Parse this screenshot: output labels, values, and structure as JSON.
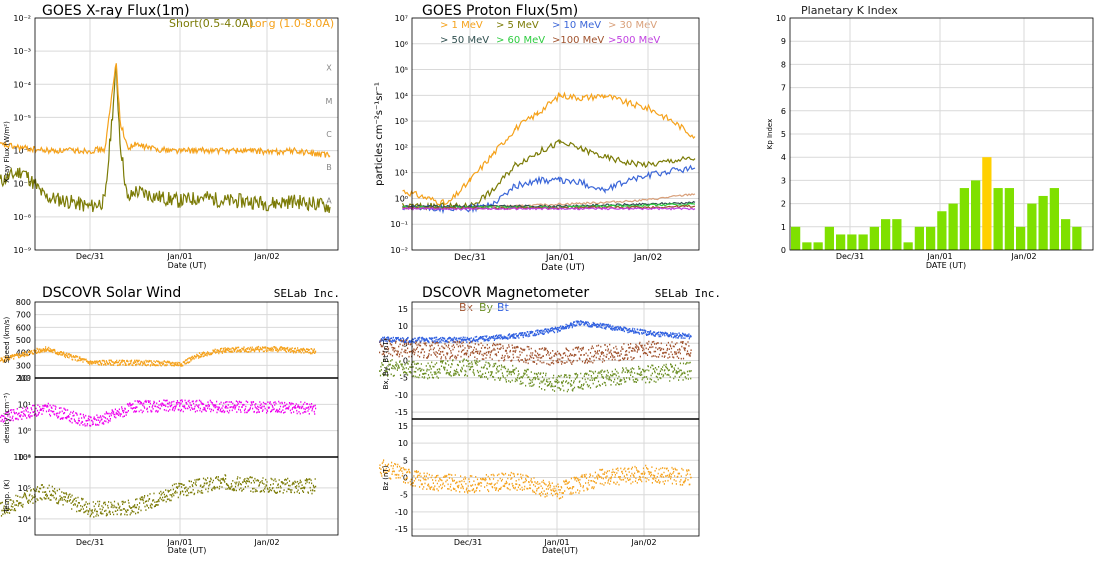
{
  "colors": {
    "xray_short": "#7b7b06",
    "xray_long": "#f5a21c",
    "kp_normal": "#7fe000",
    "kp_storm": "#ffd000",
    "density": "#ee00ee",
    "bx": "#a0522d",
    "by": "#6b8e23",
    "bt": "#3060e0",
    "bz": "#f5a21c"
  },
  "date_ticks": [
    "Dec/31",
    "Jan/01",
    "Jan/02"
  ],
  "xlabel_ut": "Date (UT)",
  "xlabel_date_ut": "DATE (UT)",
  "xlabel_date_ut_nospace": "Date(UT)",
  "chart_data": [
    {
      "type": "line",
      "title": "GOES X-ray Flux(1m)",
      "ylabel": "X-ray Flux (W/m²)",
      "yscale": "log",
      "ylim": [
        1e-09,
        0.01
      ],
      "ytick_labels": [
        "10⁻²",
        "10⁻³",
        "10⁻⁴",
        "10⁻⁵",
        "10⁻⁶",
        "10⁻⁷",
        "10⁻⁸",
        "10⁻⁹"
      ],
      "flare_classes": [
        "X",
        "M",
        "C",
        "B",
        "A"
      ],
      "legend": "top-right",
      "series": [
        {
          "name": "Short(0.5-4.0A)",
          "color": "#7b7b06",
          "x": [
            "Dec/30 00:00",
            "Dec/30 06:00",
            "Dec/30 12:00",
            "Dec/30 18:00",
            "Dec/31 00:00",
            "Dec/31 04:00",
            "Dec/31 07:00",
            "Dec/31 08:00",
            "Dec/31 10:00",
            "Dec/31 12:00",
            "Dec/31 18:00",
            "Jan/01 00:00",
            "Jan/01 06:00",
            "Jan/01 12:00",
            "Jan/01 18:00",
            "Jan/02 00:00",
            "Jan/02 06:00",
            "Jan/02 12:00",
            "Jan/02 16:00"
          ],
          "values": [
            1.2e-07,
            2.5e-07,
            4e-08,
            3e-08,
            2e-08,
            3e-08,
            0.0003,
            2e-06,
            3e-08,
            6e-08,
            4e-08,
            3e-08,
            4e-08,
            3e-08,
            3e-08,
            2.5e-08,
            3e-08,
            2.5e-08,
            2e-08
          ]
        },
        {
          "name": "Long (1.0-8.0A)",
          "color": "#f5a21c",
          "x": [
            "Dec/30 00:00",
            "Dec/30 06:00",
            "Dec/30 12:00",
            "Dec/30 18:00",
            "Dec/31 00:00",
            "Dec/31 04:00",
            "Dec/31 07:00",
            "Dec/31 08:00",
            "Dec/31 10:00",
            "Dec/31 12:00",
            "Dec/31 18:00",
            "Jan/01 00:00",
            "Jan/01 06:00",
            "Jan/01 12:00",
            "Jan/01 18:00",
            "Jan/02 00:00",
            "Jan/02 06:00",
            "Jan/02 12:00",
            "Jan/02 16:00"
          ],
          "values": [
            1.5e-06,
            1.2e-06,
            1e-06,
            1e-06,
            1e-06,
            1.1e-06,
            0.0005,
            8e-06,
            1.2e-06,
            1.5e-06,
            1.1e-06,
            1e-06,
            1e-06,
            1e-06,
            1e-06,
            9e-07,
            1e-06,
            8e-07,
            7e-07
          ]
        }
      ]
    },
    {
      "type": "line",
      "title": "GOES Proton Flux(5m)",
      "ylabel": "particles cm⁻²s⁻¹sr⁻¹",
      "yscale": "log",
      "ylim": [
        0.01,
        10000000.0
      ],
      "ytick_labels": [
        "10⁷",
        "10⁶",
        "10⁵",
        "10⁴",
        "10³",
        "10²",
        "10¹",
        "10⁰",
        "10⁻¹",
        "10⁻²"
      ],
      "legend": "top",
      "series": [
        {
          "name": "> 1 MeV",
          "color": "#f5a21c",
          "x": [
            "Dec/30 06:00",
            "Dec/30 18:00",
            "Dec/31 00:00",
            "Dec/31 06:00",
            "Dec/31 12:00",
            "Dec/31 18:00",
            "Jan/01 00:00",
            "Jan/01 06:00",
            "Jan/01 12:00",
            "Jan/01 18:00",
            "Jan/02 00:00",
            "Jan/02 06:00",
            "Jan/02 12:00"
          ],
          "values": [
            2,
            0.6,
            5,
            50,
            500,
            2000,
            10000,
            8000,
            10000,
            5000,
            3000,
            1000,
            250
          ]
        },
        {
          "name": "> 5 MeV",
          "color": "#7b7b06",
          "x": [
            "Dec/30 06:00",
            "Dec/30 18:00",
            "Dec/31 00:00",
            "Dec/31 06:00",
            "Dec/31 12:00",
            "Dec/31 18:00",
            "Jan/01 00:00",
            "Jan/01 06:00",
            "Jan/01 12:00",
            "Jan/01 18:00",
            "Jan/02 00:00",
            "Jan/02 06:00",
            "Jan/02 12:00"
          ],
          "values": [
            0.5,
            0.5,
            0.5,
            2,
            20,
            60,
            150,
            80,
            40,
            25,
            20,
            30,
            35
          ]
        },
        {
          "name": "> 10 MeV",
          "color": "#3b66d8",
          "x": [
            "Dec/30 06:00",
            "Dec/30 18:00",
            "Dec/31 00:00",
            "Dec/31 06:00",
            "Dec/31 12:00",
            "Dec/31 18:00",
            "Jan/01 00:00",
            "Jan/01 06:00",
            "Jan/01 12:00",
            "Jan/01 18:00",
            "Jan/02 00:00",
            "Jan/02 06:00",
            "Jan/02 12:00"
          ],
          "values": [
            0.4,
            0.4,
            0.4,
            0.6,
            3,
            5,
            5,
            4,
            2,
            5,
            8,
            12,
            15
          ]
        },
        {
          "name": "> 30 MeV",
          "color": "#d9a07a",
          "x": [
            "Dec/30 06:00",
            "Dec/31 00:00",
            "Dec/31 12:00",
            "Jan/01 00:00",
            "Jan/01 12:00",
            "Jan/02 00:00",
            "Jan/02 12:00"
          ],
          "values": [
            0.45,
            0.45,
            0.5,
            0.6,
            0.7,
            0.9,
            1.5
          ]
        },
        {
          "name": "> 50 MeV",
          "color": "#2f4f4f",
          "x": [
            "Dec/30 06:00",
            "Dec/31 00:00",
            "Dec/31 12:00",
            "Jan/01 00:00",
            "Jan/01 12:00",
            "Jan/02 00:00",
            "Jan/02 12:00"
          ],
          "values": [
            0.5,
            0.5,
            0.5,
            0.5,
            0.55,
            0.6,
            0.7
          ]
        },
        {
          "name": "> 60 MeV",
          "color": "#2ecc40",
          "x": [
            "Dec/30 06:00",
            "Dec/31 00:00",
            "Dec/31 12:00",
            "Jan/01 00:00",
            "Jan/01 12:00",
            "Jan/02 00:00",
            "Jan/02 12:00"
          ],
          "values": [
            0.45,
            0.45,
            0.45,
            0.45,
            0.5,
            0.55,
            0.6
          ]
        },
        {
          "name": ">100 MeV",
          "color": "#a0522d",
          "x": [
            "Dec/30 06:00",
            "Dec/31 00:00",
            "Dec/31 12:00",
            "Jan/01 00:00",
            "Jan/01 12:00",
            "Jan/02 00:00",
            "Jan/02 12:00"
          ],
          "values": [
            0.42,
            0.42,
            0.42,
            0.42,
            0.45,
            0.45,
            0.5
          ]
        },
        {
          "name": ">500 MeV",
          "color": "#c040e0",
          "x": [
            "Dec/30 06:00",
            "Dec/31 00:00",
            "Dec/31 12:00",
            "Jan/01 00:00",
            "Jan/01 12:00",
            "Jan/02 00:00",
            "Jan/02 12:00"
          ],
          "values": [
            0.4,
            0.4,
            0.4,
            0.4,
            0.4,
            0.4,
            0.4
          ]
        }
      ]
    },
    {
      "type": "bar",
      "title": "Planetary K Index",
      "ylabel": "Kp Index",
      "ylim": [
        0,
        10
      ],
      "yticks": [
        0,
        1,
        2,
        3,
        4,
        5,
        6,
        7,
        8,
        9,
        10
      ],
      "values": [
        1,
        0.33,
        0.33,
        1,
        0.67,
        0.67,
        0.67,
        1,
        1.33,
        1.33,
        0.33,
        1,
        1,
        1.67,
        2,
        2.67,
        3,
        4,
        2.67,
        2.67,
        1,
        2,
        2.33,
        2.67,
        1.33,
        1
      ],
      "storm_index": 17
    },
    {
      "type": "scatter",
      "title": "DSCOVR Solar Wind",
      "credit": "SELab Inc.",
      "panels": [
        {
          "ylabel": "Speed (km/s)",
          "ylim": [
            200,
            800
          ],
          "yticks": [
            200,
            300,
            400,
            500,
            600,
            700,
            800
          ],
          "color": "#f5a21c",
          "x": [
            "Dec/30 00:00",
            "Dec/30 12:00",
            "Dec/31 00:00",
            "Dec/31 12:00",
            "Jan/01 00:00",
            "Jan/01 06:00",
            "Jan/01 12:00",
            "Jan/02 00:00",
            "Jan/02 12:00"
          ],
          "values": [
            340,
            430,
            320,
            320,
            310,
            390,
            420,
            430,
            410
          ]
        },
        {
          "ylabel": "density (cm⁻³)",
          "yscale": "log",
          "ylim": [
            0.1,
            100
          ],
          "ytick_labels": [
            "10²",
            "10¹",
            "10⁰",
            "10⁻¹"
          ],
          "color": "#ee00ee",
          "x": [
            "Dec/30 00:00",
            "Dec/30 12:00",
            "Dec/31 00:00",
            "Dec/31 12:00",
            "Jan/01 00:00",
            "Jan/01 12:00",
            "Jan/02 00:00",
            "Jan/02 12:00"
          ],
          "values": [
            3,
            7,
            2,
            8,
            9,
            8,
            8,
            7
          ]
        },
        {
          "ylabel": "Temp. (K)",
          "yscale": "log",
          "ylim": [
            3000,
            1000000
          ],
          "ytick_labels": [
            "10⁶",
            "10⁵",
            "10⁴"
          ],
          "color": "#7b7b06",
          "x": [
            "Dec/30 00:00",
            "Dec/30 12:00",
            "Dec/31 00:00",
            "Dec/31 12:00",
            "Jan/01 00:00",
            "Jan/01 12:00",
            "Jan/02 00:00",
            "Jan/02 12:00"
          ],
          "values": [
            20000,
            80000,
            20000,
            25000,
            90000,
            150000,
            120000,
            110000
          ]
        }
      ]
    },
    {
      "type": "scatter",
      "title": "DSCOVR Magnetometer",
      "credit": "SELab Inc.",
      "legend": [
        "Bx",
        "By",
        "Bt"
      ],
      "panels": [
        {
          "ylabel": "Bx, By, Bt (nT)",
          "ylim": [
            -17,
            17
          ],
          "yticks": [
            15,
            10,
            5,
            0,
            -5,
            -10,
            -15
          ],
          "series": [
            {
              "name": "Bt",
              "color": "#3060e0",
              "x": [
                "Dec/30 00:00",
                "Dec/30 12:00",
                "Dec/31 00:00",
                "Dec/31 12:00",
                "Jan/01 00:00",
                "Jan/01 06:00",
                "Jan/01 12:00",
                "Jan/02 00:00",
                "Jan/02 12:00"
              ],
              "values": [
                6,
                6,
                6,
                7,
                9,
                11,
                10,
                8,
                7
              ]
            },
            {
              "name": "Bx",
              "color": "#a0522d",
              "x": [
                "Dec/30 00:00",
                "Dec/30 12:00",
                "Dec/31 00:00",
                "Dec/31 12:00",
                "Jan/01 00:00",
                "Jan/01 12:00",
                "Jan/02 00:00",
                "Jan/02 12:00"
              ],
              "values": [
                4,
                3,
                3,
                2,
                1,
                2,
                3,
                3
              ]
            },
            {
              "name": "By",
              "color": "#6b8e23",
              "x": [
                "Dec/30 00:00",
                "Dec/30 12:00",
                "Dec/31 00:00",
                "Dec/31 12:00",
                "Jan/01 00:00",
                "Jan/01 12:00",
                "Jan/02 00:00",
                "Jan/02 12:00"
              ],
              "values": [
                -2,
                -3,
                -2,
                -4,
                -7,
                -5,
                -4,
                -3
              ]
            }
          ]
        },
        {
          "ylabel": "Bz (nT)",
          "ylim": [
            -17,
            17
          ],
          "yticks": [
            15,
            10,
            5,
            0,
            -5,
            -10,
            -15
          ],
          "series": [
            {
              "name": "Bz",
              "color": "#f5a21c",
              "x": [
                "Dec/30 00:00",
                "Dec/30 12:00",
                "Dec/31 00:00",
                "Dec/31 12:00",
                "Jan/01 00:00",
                "Jan/01 06:00",
                "Jan/01 12:00",
                "Jan/02 00:00",
                "Jan/02 12:00"
              ],
              "values": [
                3,
                -1,
                -2,
                -1,
                -4,
                -2,
                0,
                1,
                0
              ]
            }
          ]
        }
      ]
    }
  ]
}
